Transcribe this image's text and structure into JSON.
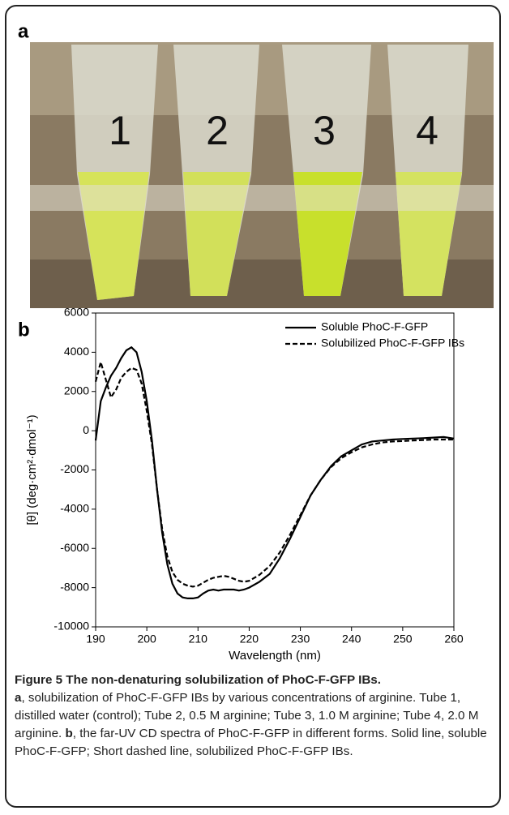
{
  "panel_a": {
    "label": "a",
    "tube_labels": [
      "1",
      "2",
      "3",
      "4"
    ]
  },
  "panel_b": {
    "label": "b"
  },
  "chart_data": {
    "type": "line",
    "xlabel": "Wavelength (nm)",
    "ylabel": "[θ] (deg·cm²·dmol⁻¹)",
    "x": [
      190,
      191,
      192,
      193,
      194,
      195,
      196,
      197,
      198,
      199,
      200,
      201,
      202,
      203,
      204,
      205,
      206,
      207,
      208,
      209,
      210,
      211,
      212,
      213,
      214,
      215,
      216,
      217,
      218,
      219,
      220,
      222,
      224,
      226,
      228,
      230,
      232,
      234,
      236,
      238,
      240,
      242,
      244,
      246,
      248,
      250,
      252,
      254,
      256,
      258,
      260
    ],
    "series": [
      {
        "name": "Soluble PhoC-F-GFP",
        "color": "#000000",
        "dash": "solid",
        "values": [
          -500,
          1500,
          2200,
          2800,
          3200,
          3700,
          4100,
          4250,
          4000,
          3000,
          1500,
          -500,
          -3000,
          -5200,
          -6800,
          -7800,
          -8300,
          -8500,
          -8550,
          -8550,
          -8500,
          -8300,
          -8150,
          -8100,
          -8150,
          -8100,
          -8100,
          -8100,
          -8150,
          -8100,
          -8000,
          -7700,
          -7300,
          -6500,
          -5500,
          -4400,
          -3300,
          -2500,
          -1800,
          -1300,
          -1000,
          -700,
          -550,
          -500,
          -450,
          -420,
          -400,
          -380,
          -350,
          -320,
          -400
        ]
      },
      {
        "name": "Solubilized PhoC-F-GFP IBs",
        "color": "#000000",
        "dash": "dashed",
        "values": [
          2500,
          3500,
          2600,
          1700,
          2100,
          2700,
          3000,
          3200,
          3100,
          2400,
          1000,
          -700,
          -3000,
          -5000,
          -6400,
          -7200,
          -7600,
          -7800,
          -7900,
          -7950,
          -7900,
          -7750,
          -7600,
          -7500,
          -7450,
          -7400,
          -7450,
          -7550,
          -7650,
          -7700,
          -7650,
          -7350,
          -6900,
          -6200,
          -5300,
          -4300,
          -3300,
          -2500,
          -1850,
          -1400,
          -1100,
          -850,
          -700,
          -600,
          -550,
          -530,
          -500,
          -480,
          -450,
          -450,
          -450
        ]
      }
    ],
    "xlim": [
      190,
      260
    ],
    "xticks": [
      190,
      200,
      210,
      220,
      230,
      240,
      250,
      260
    ],
    "ylim": [
      -10000,
      6000
    ],
    "yticks": [
      -10000,
      -8000,
      -6000,
      -4000,
      -2000,
      0,
      2000,
      4000,
      6000
    ],
    "legend": "top-right"
  },
  "caption": {
    "title": "Figure 5 The non-denaturing solubilization of PhoC-F-GFP IBs.",
    "a_label": "a",
    "a_text": ", solubilization of PhoC-F-GFP IBs by various concentrations of arginine. Tube 1, distilled water (control); Tube 2, 0.5 M arginine; Tube 3, 1.0 M arginine; Tube 4, 2.0 M arginine.",
    "b_label": "b",
    "b_text": ", the far-UV CD spectra of PhoC-F-GFP in different forms. Solid line, soluble PhoC-F-GFP; Short dashed line, solubilized PhoC-F-GFP IBs."
  }
}
